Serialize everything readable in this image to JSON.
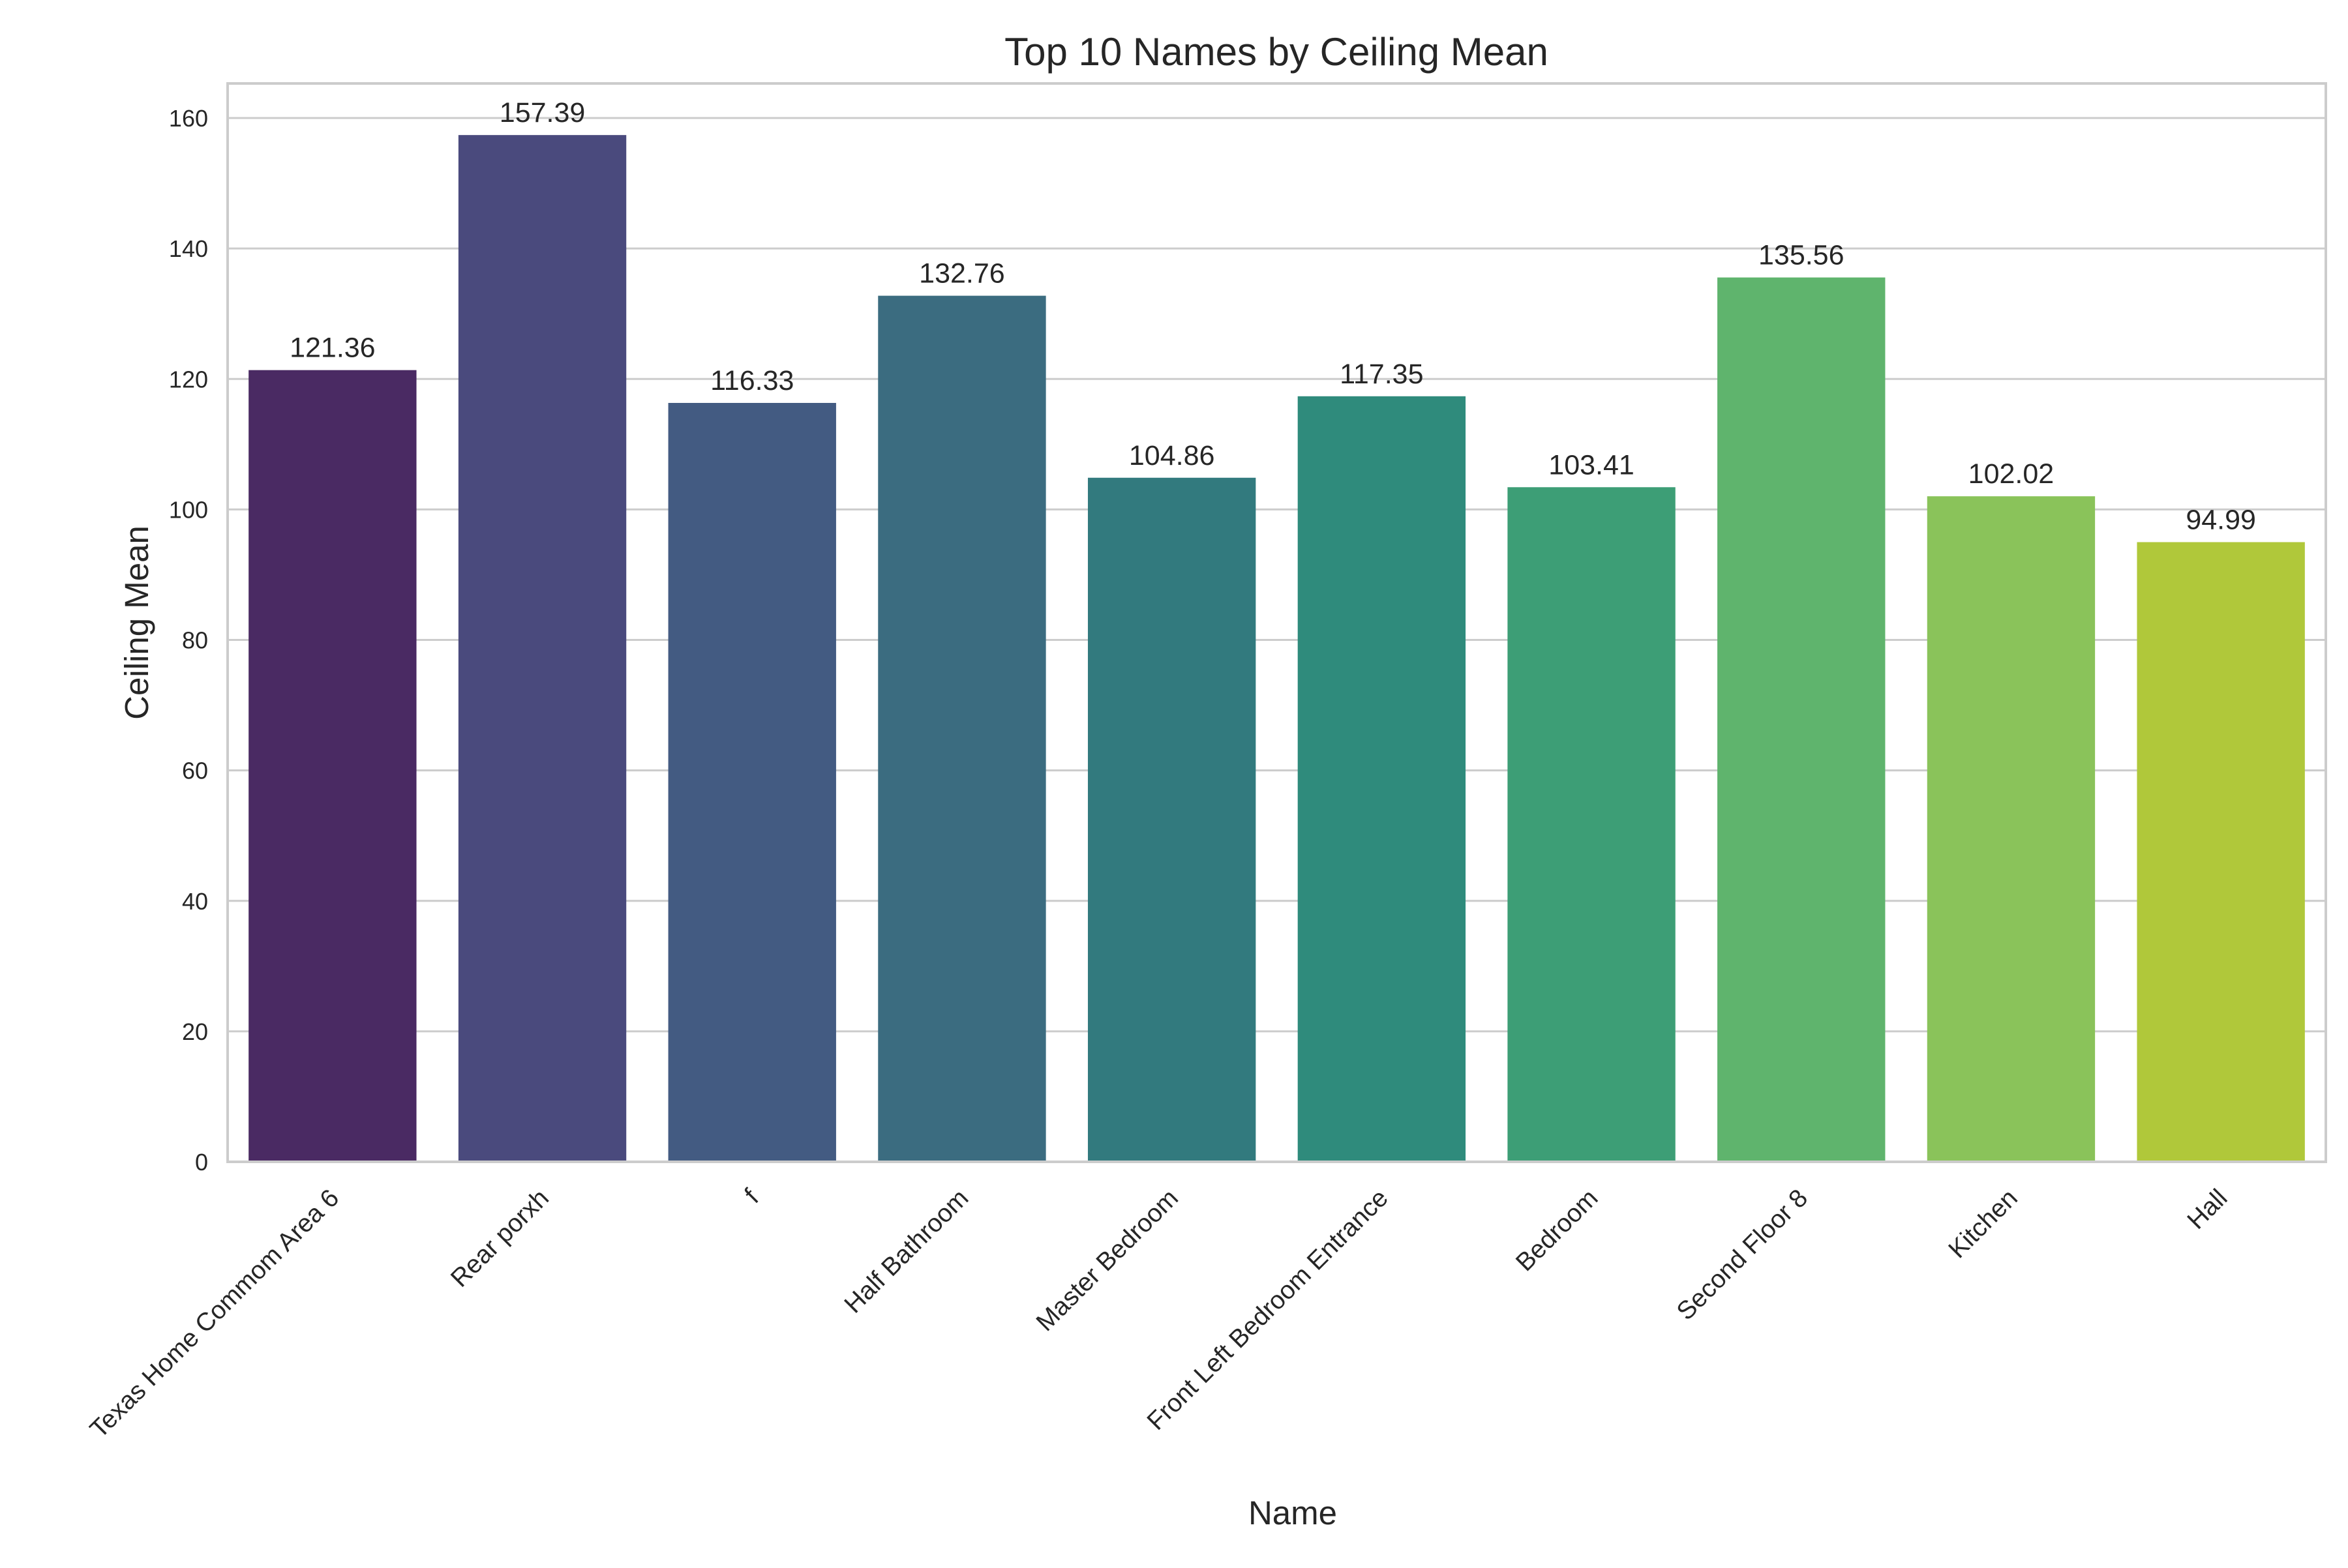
{
  "chart_data": {
    "type": "bar",
    "title": "Top 10 Names by Ceiling Mean",
    "xlabel": "Name",
    "ylabel": "Ceiling Mean",
    "categories": [
      "Texas Home Commom Area 6",
      "Rear porxh",
      "f",
      "Half Bathroom",
      "Master Bedroom",
      "Front Left Bedroom Entrance",
      "Bedroom",
      "Second Floor 8",
      "Kitchen",
      "Hall"
    ],
    "values": [
      121.36,
      157.39,
      116.33,
      132.76,
      104.86,
      117.35,
      103.41,
      135.56,
      102.02,
      94.99
    ],
    "value_labels": [
      "121.36",
      "157.39",
      "116.33",
      "132.76",
      "104.86",
      "117.35",
      "103.41",
      "135.56",
      "102.02",
      "94.99"
    ],
    "colors": [
      "#4a2a63",
      "#4a4a7d",
      "#435b82",
      "#3b6c80",
      "#327a7e",
      "#2f8b7c",
      "#3d9e76",
      "#5fb46d",
      "#8ac35a",
      "#b0c83a"
    ],
    "yticks": [
      0,
      20,
      40,
      60,
      80,
      100,
      120,
      140,
      160
    ],
    "ylim": [
      0,
      165.3
    ],
    "grid": true,
    "legend": "none"
  }
}
